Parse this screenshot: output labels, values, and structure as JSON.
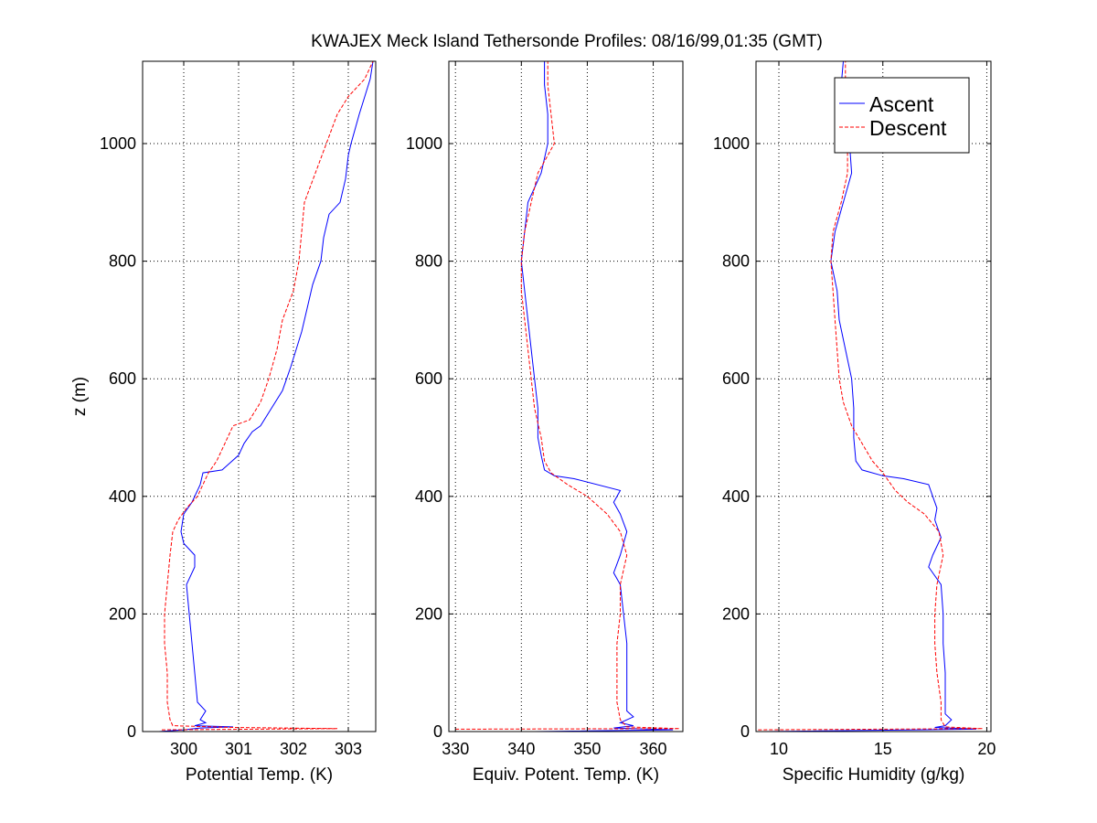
{
  "figure": {
    "title": "KWAJEX Meck Island Tethersonde Profiles: 08/16/99,01:35 (GMT)"
  },
  "colors": {
    "ascent": "#0000ff",
    "descent": "#ff0000",
    "axes": "#000000",
    "grid": "#000000",
    "background": "#ffffff"
  },
  "chart_data": [
    {
      "type": "line",
      "xlabel": "Potential Temp. (K)",
      "ylabel": "z (m)",
      "xlim": [
        299.25,
        303.5
      ],
      "ylim": [
        0,
        1140
      ],
      "xticks": [
        300,
        301,
        302,
        303
      ],
      "yticks": [
        0,
        200,
        400,
        600,
        800,
        1000
      ],
      "grid": true,
      "series": [
        {
          "name": "Ascent",
          "style": "solid",
          "points": [
            [
              299.55,
              0
            ],
            [
              300.0,
              3
            ],
            [
              300.3,
              6
            ],
            [
              300.9,
              8
            ],
            [
              300.2,
              10
            ],
            [
              300.4,
              15
            ],
            [
              300.3,
              20
            ],
            [
              300.4,
              35
            ],
            [
              300.25,
              50
            ],
            [
              300.2,
              100
            ],
            [
              300.15,
              150
            ],
            [
              300.1,
              200
            ],
            [
              300.05,
              250
            ],
            [
              300.2,
              280
            ],
            [
              300.2,
              300
            ],
            [
              300.0,
              320
            ],
            [
              299.95,
              340
            ],
            [
              300.0,
              370
            ],
            [
              300.15,
              390
            ],
            [
              300.3,
              420
            ],
            [
              300.35,
              440
            ],
            [
              300.7,
              445
            ],
            [
              301.0,
              470
            ],
            [
              301.1,
              490
            ],
            [
              301.25,
              510
            ],
            [
              301.4,
              520
            ],
            [
              301.6,
              550
            ],
            [
              301.8,
              580
            ],
            [
              301.95,
              620
            ],
            [
              302.05,
              650
            ],
            [
              302.15,
              680
            ],
            [
              302.25,
              720
            ],
            [
              302.35,
              760
            ],
            [
              302.5,
              800
            ],
            [
              302.55,
              840
            ],
            [
              302.65,
              880
            ],
            [
              302.85,
              900
            ],
            [
              302.95,
              940
            ],
            [
              303.0,
              980
            ],
            [
              303.05,
              1000
            ],
            [
              303.2,
              1050
            ],
            [
              303.3,
              1080
            ],
            [
              303.4,
              1110
            ],
            [
              303.45,
              1140
            ]
          ]
        },
        {
          "name": "Descent",
          "style": "dashed",
          "points": [
            [
              299.6,
              3
            ],
            [
              302.8,
              5
            ],
            [
              300.9,
              7
            ],
            [
              299.8,
              10
            ],
            [
              299.75,
              20
            ],
            [
              299.7,
              50
            ],
            [
              299.7,
              100
            ],
            [
              299.65,
              150
            ],
            [
              299.65,
              200
            ],
            [
              299.7,
              250
            ],
            [
              299.75,
              300
            ],
            [
              299.8,
              340
            ],
            [
              299.9,
              360
            ],
            [
              300.05,
              380
            ],
            [
              300.25,
              400
            ],
            [
              300.35,
              420
            ],
            [
              300.45,
              440
            ],
            [
              300.6,
              460
            ],
            [
              300.75,
              490
            ],
            [
              300.9,
              520
            ],
            [
              301.2,
              530
            ],
            [
              301.4,
              560
            ],
            [
              301.55,
              600
            ],
            [
              301.7,
              650
            ],
            [
              301.8,
              700
            ],
            [
              302.0,
              750
            ],
            [
              302.1,
              800
            ],
            [
              302.15,
              850
            ],
            [
              302.2,
              900
            ],
            [
              302.4,
              950
            ],
            [
              302.6,
              1000
            ],
            [
              302.8,
              1050
            ],
            [
              303.0,
              1080
            ],
            [
              303.3,
              1110
            ],
            [
              303.45,
              1140
            ]
          ]
        }
      ]
    },
    {
      "type": "line",
      "xlabel": "Equiv. Potent. Temp. (K)",
      "xlim": [
        329,
        364.5
      ],
      "ylim": [
        0,
        1140
      ],
      "xticks": [
        330,
        340,
        350,
        360
      ],
      "yticks": [
        0,
        200,
        400,
        600,
        800,
        1000
      ],
      "grid": true,
      "series": [
        {
          "name": "Ascent",
          "style": "solid",
          "points": [
            [
              342,
              0
            ],
            [
              363,
              3
            ],
            [
              354,
              6
            ],
            [
              357,
              10
            ],
            [
              355,
              15
            ],
            [
              357,
              25
            ],
            [
              356,
              35
            ],
            [
              356,
              50
            ],
            [
              356,
              100
            ],
            [
              356,
              150
            ],
            [
              355.5,
              200
            ],
            [
              355,
              250
            ],
            [
              354,
              270
            ],
            [
              355,
              300
            ],
            [
              356,
              340
            ],
            [
              355,
              370
            ],
            [
              354,
              390
            ],
            [
              355,
              410
            ],
            [
              348,
              430
            ],
            [
              345,
              435
            ],
            [
              343.5,
              445
            ],
            [
              343,
              470
            ],
            [
              342.5,
              500
            ],
            [
              342.5,
              550
            ],
            [
              342,
              600
            ],
            [
              341.5,
              650
            ],
            [
              341,
              700
            ],
            [
              340.5,
              750
            ],
            [
              340,
              800
            ],
            [
              340.5,
              850
            ],
            [
              341,
              900
            ],
            [
              343,
              950
            ],
            [
              344,
              1000
            ],
            [
              344,
              1050
            ],
            [
              343.5,
              1100
            ],
            [
              343.5,
              1140
            ]
          ]
        },
        {
          "name": "Descent",
          "style": "dashed",
          "points": [
            [
              330,
              4
            ],
            [
              364,
              5
            ],
            [
              356,
              8
            ],
            [
              355,
              20
            ],
            [
              354.5,
              50
            ],
            [
              354.5,
              100
            ],
            [
              354.5,
              150
            ],
            [
              355,
              200
            ],
            [
              355,
              250
            ],
            [
              356,
              300
            ],
            [
              355,
              340
            ],
            [
              353,
              370
            ],
            [
              350,
              400
            ],
            [
              347,
              420
            ],
            [
              344.5,
              440
            ],
            [
              343.5,
              460
            ],
            [
              343,
              500
            ],
            [
              342,
              550
            ],
            [
              341.5,
              600
            ],
            [
              341,
              650
            ],
            [
              340.5,
              700
            ],
            [
              340,
              750
            ],
            [
              340,
              800
            ],
            [
              340.5,
              850
            ],
            [
              341.5,
              900
            ],
            [
              342.5,
              950
            ],
            [
              345,
              1000
            ],
            [
              344.5,
              1050
            ],
            [
              344,
              1100
            ],
            [
              344,
              1140
            ]
          ]
        }
      ]
    },
    {
      "type": "line",
      "xlabel": "Specific Humidity (g/kg)",
      "xlim": [
        8.9,
        20.2
      ],
      "ylim": [
        0,
        1140
      ],
      "xticks": [
        10,
        15,
        20
      ],
      "yticks": [
        0,
        200,
        400,
        600,
        800,
        1000
      ],
      "grid": true,
      "series": [
        {
          "name": "Ascent",
          "style": "solid",
          "points": [
            [
              9.3,
              0
            ],
            [
              19.5,
              4
            ],
            [
              17.5,
              7
            ],
            [
              18,
              10
            ],
            [
              18.3,
              20
            ],
            [
              18,
              30
            ],
            [
              18,
              50
            ],
            [
              18,
              100
            ],
            [
              17.9,
              150
            ],
            [
              17.9,
              200
            ],
            [
              17.8,
              250
            ],
            [
              17.2,
              280
            ],
            [
              17.4,
              300
            ],
            [
              17.8,
              330
            ],
            [
              17.5,
              360
            ],
            [
              17.6,
              380
            ],
            [
              17.4,
              400
            ],
            [
              17.2,
              420
            ],
            [
              16,
              430
            ],
            [
              15,
              435
            ],
            [
              14,
              445
            ],
            [
              13.7,
              460
            ],
            [
              13.6,
              500
            ],
            [
              13.6,
              550
            ],
            [
              13.5,
              600
            ],
            [
              13.2,
              650
            ],
            [
              12.9,
              700
            ],
            [
              12.8,
              750
            ],
            [
              12.5,
              800
            ],
            [
              12.7,
              850
            ],
            [
              13.1,
              900
            ],
            [
              13.5,
              950
            ],
            [
              13.4,
              1000
            ],
            [
              13.1,
              1050
            ],
            [
              13.0,
              1100
            ],
            [
              13.1,
              1140
            ]
          ]
        },
        {
          "name": "Descent",
          "style": "dashed",
          "points": [
            [
              9.0,
              3
            ],
            [
              19.8,
              5
            ],
            [
              18.0,
              8
            ],
            [
              17.8,
              20
            ],
            [
              17.8,
              50
            ],
            [
              17.6,
              100
            ],
            [
              17.5,
              150
            ],
            [
              17.5,
              200
            ],
            [
              17.6,
              250
            ],
            [
              17.9,
              300
            ],
            [
              17.7,
              340
            ],
            [
              17.0,
              370
            ],
            [
              16.2,
              390
            ],
            [
              15.6,
              410
            ],
            [
              15,
              440
            ],
            [
              14.5,
              460
            ],
            [
              14,
              490
            ],
            [
              13.5,
              520
            ],
            [
              13.1,
              560
            ],
            [
              12.9,
              600
            ],
            [
              12.8,
              650
            ],
            [
              12.7,
              700
            ],
            [
              12.6,
              750
            ],
            [
              12.5,
              800
            ],
            [
              12.6,
              850
            ],
            [
              13,
              900
            ],
            [
              13.3,
              950
            ],
            [
              13.3,
              1000
            ],
            [
              13.2,
              1050
            ],
            [
              13.2,
              1100
            ],
            [
              13.2,
              1140
            ]
          ]
        }
      ]
    }
  ]
}
